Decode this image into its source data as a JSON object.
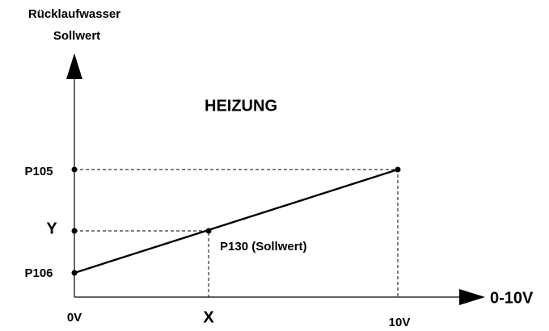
{
  "title": "HEIZUNG",
  "y_axis": {
    "label_lines": [
      "Rücklaufwasser",
      "Sollwert"
    ],
    "labels": [
      "P105",
      "Y",
      "P106"
    ]
  },
  "x_axis": {
    "label": "0-10V",
    "labels": [
      "0V",
      "X",
      "10V"
    ]
  },
  "point_label": "P130 (Sollwert)"
}
